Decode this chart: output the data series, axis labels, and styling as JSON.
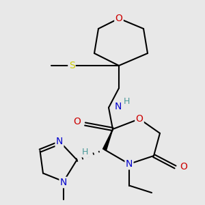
{
  "background_color": "#e8e8e8",
  "atom_colors": {
    "C": "#000000",
    "N": "#0000cc",
    "O": "#cc0000",
    "S": "#cccc00",
    "H": "#4a9999"
  },
  "bond_color": "#000000",
  "bond_width": 1.5,
  "font_size": 9,
  "title": ""
}
